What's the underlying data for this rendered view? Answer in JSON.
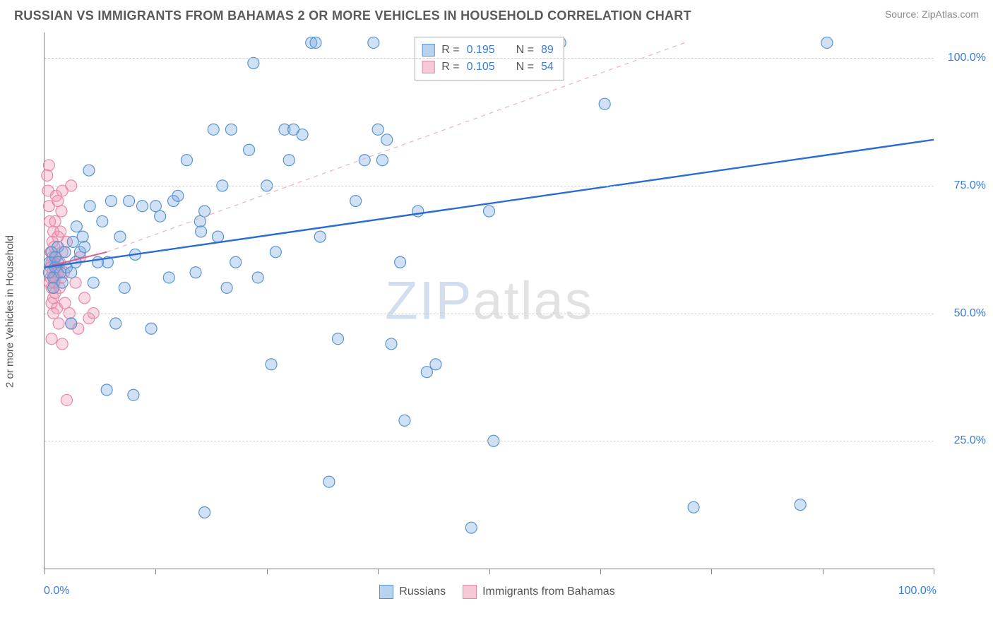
{
  "header": {
    "title": "RUSSIAN VS IMMIGRANTS FROM BAHAMAS 2 OR MORE VEHICLES IN HOUSEHOLD CORRELATION CHART",
    "source": "Source: ZipAtlas.com"
  },
  "chart": {
    "type": "scatter",
    "y_axis_label": "2 or more Vehicles in Household",
    "watermark_a": "ZIP",
    "watermark_b": "atlas",
    "xlim": [
      0,
      100
    ],
    "ylim": [
      0,
      105
    ],
    "x_ticks": [
      0,
      12.5,
      25,
      37.5,
      50,
      62.5,
      75,
      87.5,
      100
    ],
    "x_tick_labels": {
      "min": "0.0%",
      "max": "100.0%"
    },
    "y_gridlines": [
      25,
      50,
      75,
      100
    ],
    "y_tick_labels": [
      "25.0%",
      "50.0%",
      "75.0%",
      "100.0%"
    ],
    "grid_color": "#cfcfcf",
    "axis_color": "#808080",
    "background_color": "#ffffff",
    "marker_radius": 8,
    "marker_stroke_width": 1.2,
    "series": [
      {
        "name": "Russians",
        "fill": "rgba(120,170,225,0.35)",
        "stroke": "#5a94ce",
        "swatch_fill": "#b9d3ef",
        "swatch_border": "#5a94ce",
        "r_value": "0.195",
        "n_value": "89",
        "trend": {
          "x1": 0,
          "y1": 59,
          "x2": 100,
          "y2": 84,
          "stroke": "#2a6bd4",
          "width": 2.4,
          "dash": ""
        },
        "points": [
          [
            0.5,
            58
          ],
          [
            0.6,
            60
          ],
          [
            0.8,
            62
          ],
          [
            1.0,
            55
          ],
          [
            1.0,
            57
          ],
          [
            1.2,
            59
          ],
          [
            1.2,
            61
          ],
          [
            1.5,
            60
          ],
          [
            1.5,
            63
          ],
          [
            1.8,
            58
          ],
          [
            2.0,
            56
          ],
          [
            2.3,
            62
          ],
          [
            2.5,
            59
          ],
          [
            3,
            58
          ],
          [
            3.5,
            60
          ],
          [
            3.2,
            64
          ],
          [
            3.6,
            67
          ],
          [
            3.0,
            48
          ],
          [
            4.0,
            62
          ],
          [
            4.3,
            65
          ],
          [
            4.5,
            63
          ],
          [
            5.0,
            78
          ],
          [
            5.1,
            71
          ],
          [
            5.5,
            56
          ],
          [
            6.0,
            60
          ],
          [
            6.5,
            68
          ],
          [
            7,
            35
          ],
          [
            7.1,
            60
          ],
          [
            7.5,
            72
          ],
          [
            8,
            48
          ],
          [
            8.5,
            65
          ],
          [
            9,
            55
          ],
          [
            9.5,
            72
          ],
          [
            10,
            34
          ],
          [
            10.2,
            61.5
          ],
          [
            11,
            71
          ],
          [
            12,
            47
          ],
          [
            12.5,
            71
          ],
          [
            13,
            69
          ],
          [
            14,
            57
          ],
          [
            14.5,
            72
          ],
          [
            15,
            73
          ],
          [
            16,
            80
          ],
          [
            17,
            58
          ],
          [
            17.5,
            68
          ],
          [
            17.6,
            66
          ],
          [
            18,
            70
          ],
          [
            18,
            11
          ],
          [
            19,
            86
          ],
          [
            19.5,
            65
          ],
          [
            20,
            75
          ],
          [
            20.5,
            55
          ],
          [
            21,
            86
          ],
          [
            21.5,
            60
          ],
          [
            23,
            82
          ],
          [
            23.5,
            99
          ],
          [
            24,
            57
          ],
          [
            25,
            75
          ],
          [
            25.5,
            40
          ],
          [
            26,
            62
          ],
          [
            27,
            86
          ],
          [
            27.5,
            80
          ],
          [
            28,
            86
          ],
          [
            29,
            85
          ],
          [
            30,
            103
          ],
          [
            30.5,
            103
          ],
          [
            31,
            65
          ],
          [
            32,
            17
          ],
          [
            33,
            45
          ],
          [
            35,
            72
          ],
          [
            36,
            80
          ],
          [
            37,
            103
          ],
          [
            37.5,
            86
          ],
          [
            38,
            80
          ],
          [
            38.5,
            84
          ],
          [
            39,
            44
          ],
          [
            40,
            60
          ],
          [
            40.5,
            29
          ],
          [
            42,
            70
          ],
          [
            43,
            38.5
          ],
          [
            44,
            40
          ],
          [
            48,
            8
          ],
          [
            50,
            70
          ],
          [
            50.5,
            25
          ],
          [
            58,
            103
          ],
          [
            63,
            91
          ],
          [
            73,
            12
          ],
          [
            85,
            12.5
          ],
          [
            88,
            103
          ]
        ]
      },
      {
        "name": "Immigrants from Bahamas",
        "fill": "rgba(240,150,180,0.35)",
        "stroke": "#e48aa8",
        "swatch_fill": "#f6c9d7",
        "swatch_border": "#e48aa8",
        "r_value": "0.105",
        "n_value": "54",
        "trend": {
          "x1": 0,
          "y1": 59,
          "x2": 7,
          "y2": 62,
          "stroke": "#d85f87",
          "width": 2,
          "dash": ""
        },
        "trend_ext": {
          "x1": 7,
          "y1": 62,
          "x2": 72,
          "y2": 103,
          "stroke": "#edb0c4",
          "width": 1.2,
          "dash": "6,6"
        },
        "points": [
          [
            0.3,
            77
          ],
          [
            0.4,
            74
          ],
          [
            0.5,
            79
          ],
          [
            0.5,
            71
          ],
          [
            0.6,
            68
          ],
          [
            0.6,
            56
          ],
          [
            0.7,
            62
          ],
          [
            0.7,
            59
          ],
          [
            0.7,
            57
          ],
          [
            0.8,
            60
          ],
          [
            0.8,
            52
          ],
          [
            0.8,
            55
          ],
          [
            0.8,
            45
          ],
          [
            0.9,
            64
          ],
          [
            0.9,
            61
          ],
          [
            0.9,
            58
          ],
          [
            1.0,
            53
          ],
          [
            1.0,
            50
          ],
          [
            1.0,
            66
          ],
          [
            1.1,
            60
          ],
          [
            1.1,
            56
          ],
          [
            1.1,
            63
          ],
          [
            1.2,
            68
          ],
          [
            1.2,
            57
          ],
          [
            1.2,
            54
          ],
          [
            1.3,
            73
          ],
          [
            1.3,
            61
          ],
          [
            1.4,
            51
          ],
          [
            1.4,
            59
          ],
          [
            1.5,
            72
          ],
          [
            1.5,
            65
          ],
          [
            1.5,
            58
          ],
          [
            1.6,
            48
          ],
          [
            1.7,
            60
          ],
          [
            1.7,
            55
          ],
          [
            1.8,
            66
          ],
          [
            1.9,
            70
          ],
          [
            1.9,
            57
          ],
          [
            2.0,
            74
          ],
          [
            2.0,
            62
          ],
          [
            2.2,
            58
          ],
          [
            2.3,
            52
          ],
          [
            2.5,
            64
          ],
          [
            2.8,
            50
          ],
          [
            3.0,
            48
          ],
          [
            3.0,
            75
          ],
          [
            3.5,
            56
          ],
          [
            3.8,
            47
          ],
          [
            4.0,
            61
          ],
          [
            4.5,
            53
          ],
          [
            2.5,
            33
          ],
          [
            2.0,
            44
          ],
          [
            5.0,
            49
          ],
          [
            5.5,
            50
          ]
        ]
      }
    ],
    "legend_top": {
      "r_label": "R =",
      "n_label": "N ="
    },
    "legend_bottom": [
      {
        "label": "Russians",
        "fill": "#b9d3ef",
        "border": "#5a94ce"
      },
      {
        "label": "Immigrants from Bahamas",
        "fill": "#f6c9d7",
        "border": "#e48aa8"
      }
    ]
  }
}
